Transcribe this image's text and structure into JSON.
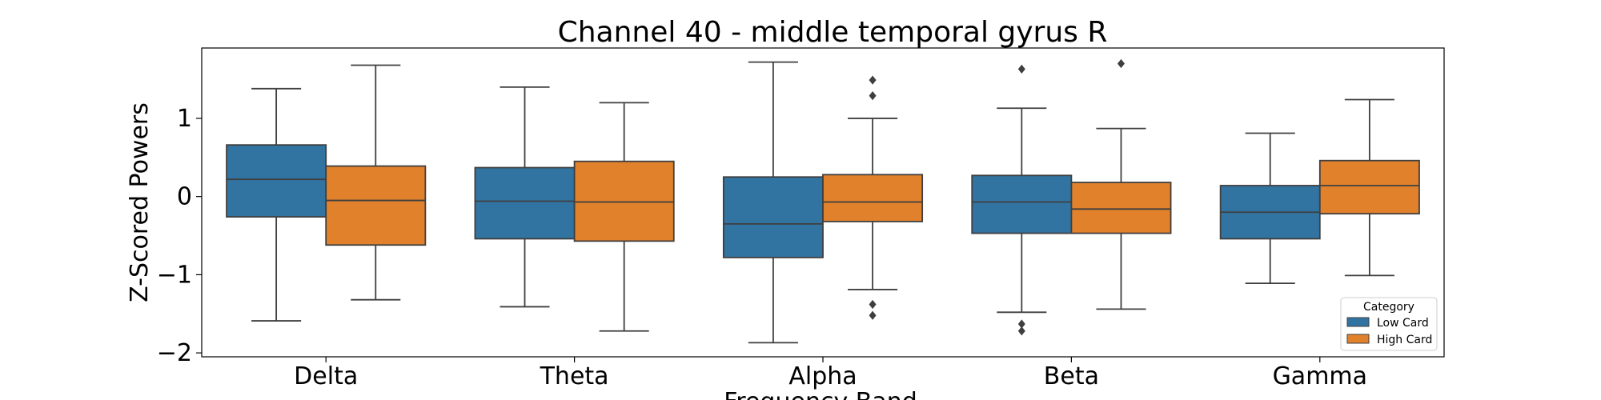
{
  "chart_data": {
    "type": "box",
    "title": "Channel 40 - middle temporal gyrus R",
    "xlabel": "Frequency Band",
    "ylabel": "Z-Scored Powers",
    "categories": [
      "Delta",
      "Theta",
      "Alpha",
      "Beta",
      "Gamma"
    ],
    "ylim": [
      -2.05,
      1.9
    ],
    "yticks": [
      1,
      0,
      -1,
      -2
    ],
    "ytick_labels": [
      "1",
      "0",
      "−1",
      "−2"
    ],
    "legend": {
      "title": "Category",
      "position": "lower-right"
    },
    "series": [
      {
        "name": "Low Card",
        "color": "#3274a1",
        "boxes": [
          {
            "whisker_low": -1.59,
            "q1": -0.26,
            "median": 0.22,
            "q3": 0.66,
            "whisker_high": 1.38,
            "outliers": []
          },
          {
            "whisker_low": -1.41,
            "q1": -0.54,
            "median": -0.06,
            "q3": 0.37,
            "whisker_high": 1.4,
            "outliers": []
          },
          {
            "whisker_low": -1.87,
            "q1": -0.78,
            "median": -0.35,
            "q3": 0.25,
            "whisker_high": 1.72,
            "outliers": []
          },
          {
            "whisker_low": -1.48,
            "q1": -0.47,
            "median": -0.07,
            "q3": 0.27,
            "whisker_high": 1.13,
            "outliers": [
              1.63,
              -1.63,
              -1.72
            ]
          },
          {
            "whisker_low": -1.11,
            "q1": -0.54,
            "median": -0.2,
            "q3": 0.14,
            "whisker_high": 0.81,
            "outliers": []
          }
        ]
      },
      {
        "name": "High Card",
        "color": "#e1812c",
        "boxes": [
          {
            "whisker_low": -1.32,
            "q1": -0.62,
            "median": -0.05,
            "q3": 0.39,
            "whisker_high": 1.68,
            "outliers": []
          },
          {
            "whisker_low": -1.72,
            "q1": -0.57,
            "median": -0.07,
            "q3": 0.45,
            "whisker_high": 1.2,
            "outliers": []
          },
          {
            "whisker_low": -1.19,
            "q1": -0.32,
            "median": -0.07,
            "q3": 0.28,
            "whisker_high": 1.0,
            "outliers": [
              1.49,
              1.29,
              -1.38,
              -1.52
            ]
          },
          {
            "whisker_low": -1.44,
            "q1": -0.47,
            "median": -0.16,
            "q3": 0.18,
            "whisker_high": 0.87,
            "outliers": [
              1.7
            ]
          },
          {
            "whisker_low": -1.01,
            "q1": -0.22,
            "median": 0.14,
            "q3": 0.46,
            "whisker_high": 1.24,
            "outliers": []
          }
        ]
      }
    ]
  }
}
